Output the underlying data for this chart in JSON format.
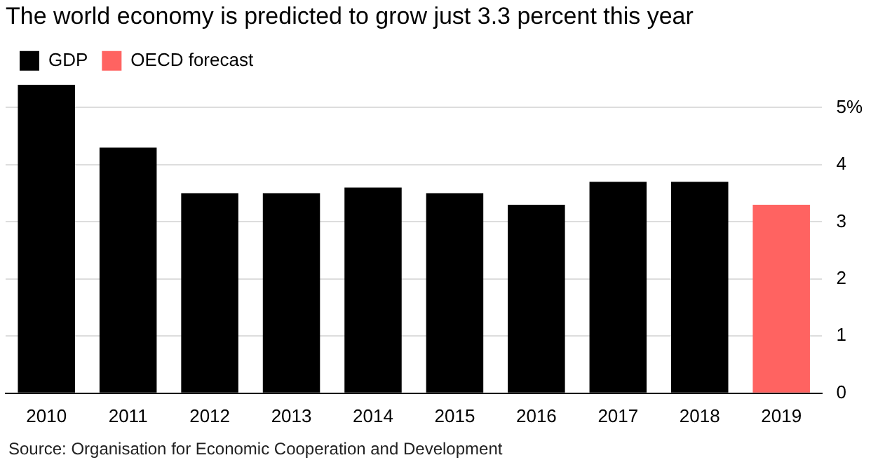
{
  "chart_data": {
    "type": "bar",
    "title": "The world economy is predicted to grow just 3.3 percent this year",
    "categories": [
      "2010",
      "2011",
      "2012",
      "2013",
      "2014",
      "2015",
      "2016",
      "2017",
      "2018",
      "2019"
    ],
    "series": [
      {
        "name": "GDP",
        "color": "#000000",
        "values": [
          5.4,
          4.3,
          3.5,
          3.5,
          3.6,
          3.5,
          3.3,
          3.7,
          3.7,
          null
        ]
      },
      {
        "name": "OECD forecast",
        "color": "#ff6361",
        "values": [
          null,
          null,
          null,
          null,
          null,
          null,
          null,
          null,
          null,
          3.3
        ]
      }
    ],
    "stacked": true,
    "ylim": [
      0,
      5.4
    ],
    "yticks": [
      0,
      1,
      2,
      3,
      4,
      {
        "value": 5,
        "label": "5%"
      }
    ],
    "grid": "y",
    "legend": "top left",
    "annotations": [
      "Source: Organisation for Economic Cooperation and Development"
    ]
  }
}
